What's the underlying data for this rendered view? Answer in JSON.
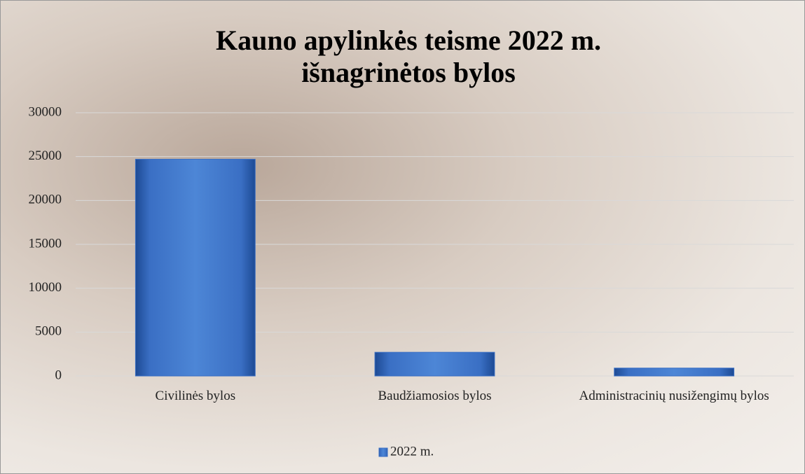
{
  "chart_data": {
    "type": "bar",
    "title": [
      "Kauno apylinkės teisme 2022 m.",
      "išnagrinėtos bylos"
    ],
    "categories": [
      "Civilinės bylos",
      "Baudžiamosios bylos",
      "Administracinių nusižengimų bylos"
    ],
    "series": [
      {
        "name": "2022 m.",
        "color": "#3a6fc4",
        "values": [
          24700,
          2700,
          900
        ]
      }
    ],
    "ylim": [
      0,
      30000
    ],
    "yticks": [
      0,
      5000,
      10000,
      15000,
      20000,
      25000,
      30000
    ],
    "grid": true,
    "legend": "bottom"
  }
}
